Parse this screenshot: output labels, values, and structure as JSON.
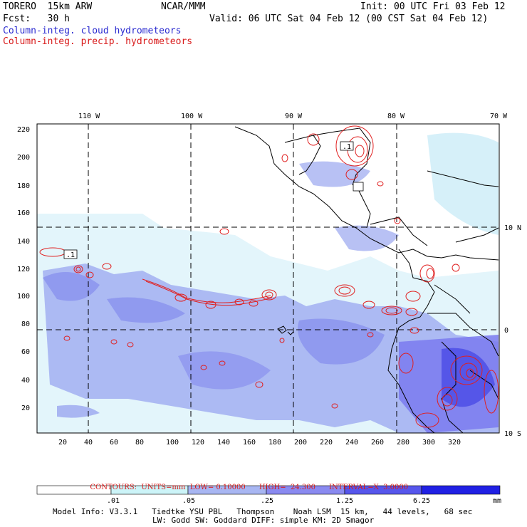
{
  "header": {
    "model": "TORERO  15km ARW",
    "org": "NCAR/MMM",
    "init": "Init: 00 UTC Fri 03 Feb 12",
    "fcst": "Fcst:   30 h",
    "valid": "Valid: 06 UTC Sat 04 Feb 12 (00 CST Sat 04 Feb 12)",
    "field1": "Column-integ. cloud hydrometeors",
    "field2": "Column-integ. precip. hydrometeors"
  },
  "map": {
    "x_ticks": [
      "20",
      "40",
      "60",
      "80",
      "100",
      "120",
      "140",
      "160",
      "180",
      "200",
      "220",
      "240",
      "260",
      "280",
      "300",
      "320"
    ],
    "y_ticks": [
      "20",
      "40",
      "60",
      "80",
      "100",
      "120",
      "140",
      "160",
      "180",
      "200",
      "220"
    ],
    "lon_labels": [
      "110 W",
      "100 W",
      "90 W",
      "80 W",
      "70 W"
    ],
    "lat_labels": [
      "10 N",
      "0",
      "10 S"
    ],
    "contour_labels": [
      ".1",
      ".1"
    ],
    "colors": {
      "light": "#ccecf8",
      "mid": "#9aa6f0",
      "dark": "#6a6af0",
      "darker": "#3a3ae8",
      "darkest": "#1a1ae0",
      "contour": "#e02020",
      "grid": "#000000"
    }
  },
  "contours_info": {
    "units": "CONTOURS:  UNITS=mm  LOW= 0.10000",
    "high": "HIGH=  24.300",
    "interval": "INTERVAL=X  3.0000"
  },
  "colorbar": {
    "labels": [
      ".01",
      ".05",
      ".25",
      "1.25",
      "6.25",
      "mm"
    ],
    "colors": [
      "#ffffff",
      "#ccf4f8",
      "#a8b6f2",
      "#8a8af0",
      "#5656ec",
      "#2020e4"
    ]
  },
  "footer": {
    "line1": "Model Info: V3.3.1   Tiedtke YSU PBL   Thompson    Noah LSM  15 km,   44 levels,   68 sec",
    "line2": "LW: Godd SW: Goddard DIFF: simple KM: 2D Smagor"
  }
}
